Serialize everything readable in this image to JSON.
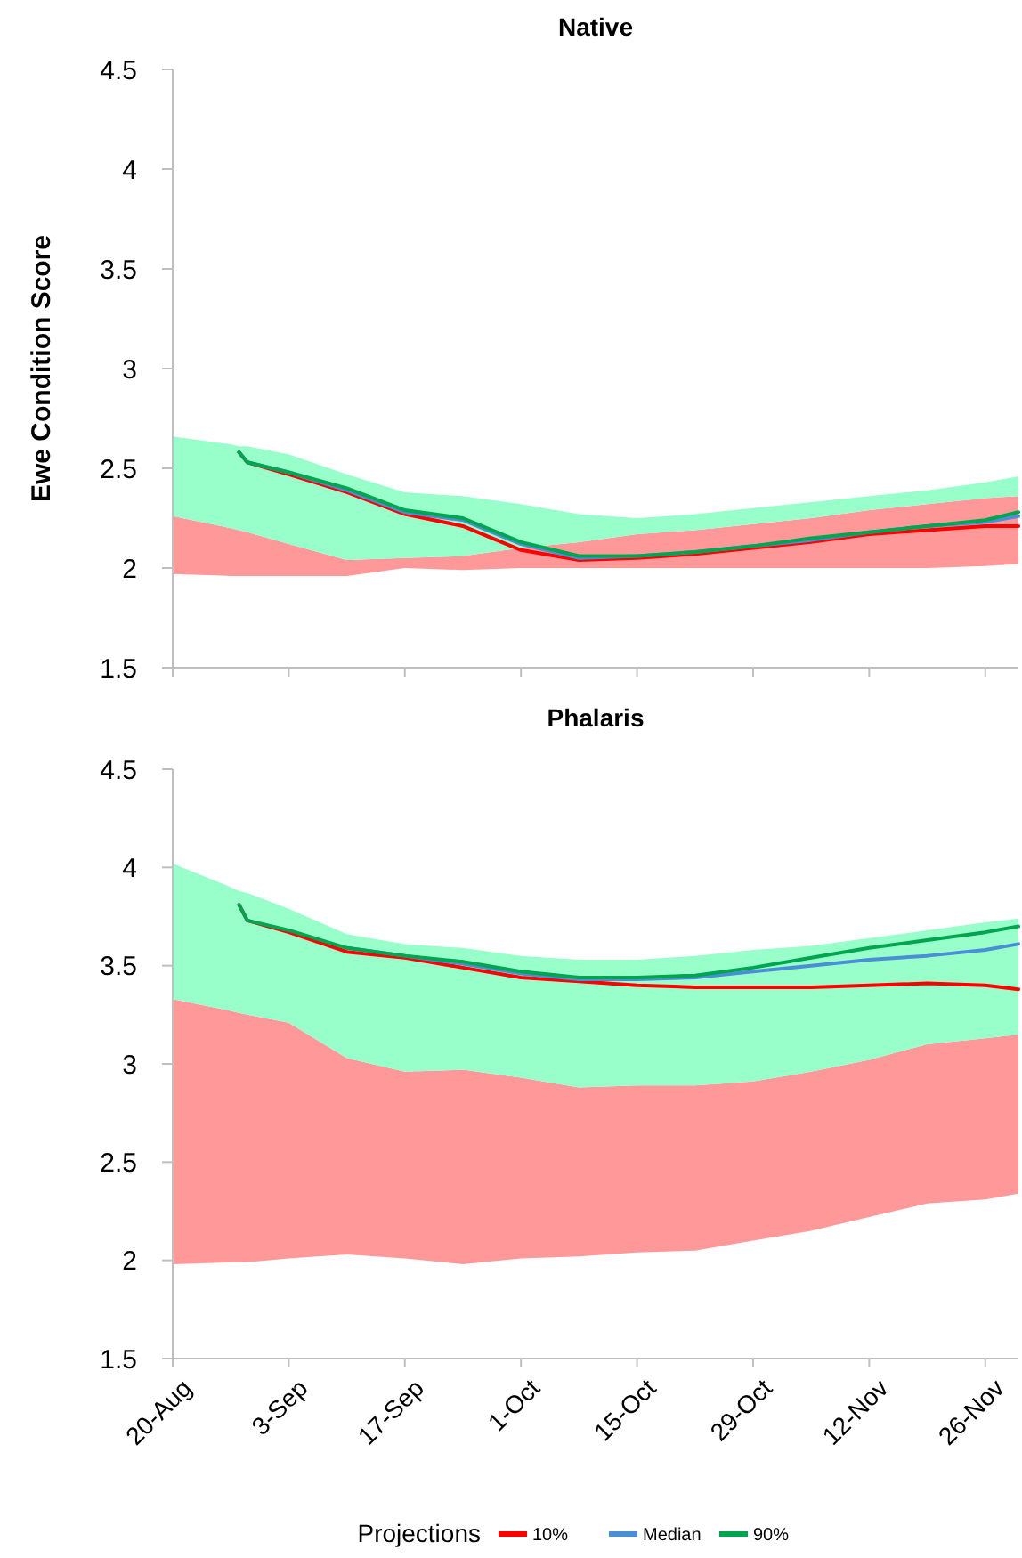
{
  "chart_data": [
    {
      "type": "line",
      "title": "Native",
      "ylabel": "Ewe Condition Score",
      "xlim": [
        "--08-20",
        "--11-30"
      ],
      "xticks": [
        {
          "value": "--08-20",
          "label": null
        },
        {
          "value": "--09-03",
          "label": null
        },
        {
          "value": "--09-17",
          "label": null
        },
        {
          "value": "--10-01",
          "label": null
        },
        {
          "value": "--10-15",
          "label": null
        },
        {
          "value": "--10-29",
          "label": null
        },
        {
          "value": "--11-12",
          "label": null
        },
        {
          "value": "--11-26",
          "label": null
        }
      ],
      "ylim": [
        1.5,
        4.5
      ],
      "yticks": [
        {
          "value": 1.5,
          "label": "1.5"
        },
        {
          "value": 2,
          "label": "2"
        },
        {
          "value": 2.5,
          "label": "2.5"
        },
        {
          "value": 3,
          "label": "3"
        },
        {
          "value": 3.5,
          "label": "3.5"
        },
        {
          "value": 4,
          "label": "4"
        },
        {
          "value": 4.5,
          "label": "4.5"
        }
      ],
      "tick_labels": "y",
      "legend": false,
      "series": [
        {
          "color": "#ff0000",
          "x": [
            "--08-20",
            "--08-27",
            "--08-28",
            "--08-29",
            "--09-03",
            "--09-10",
            "--09-17",
            "--09-24",
            "--10-01",
            "--10-08",
            "--10-15",
            "--10-22",
            "--10-29",
            "--11-05",
            "--11-12",
            "--11-19",
            "--11-26",
            "--11-30"
          ],
          "values": [
            null,
            null,
            2.58,
            2.53,
            2.47,
            2.38,
            2.27,
            2.21,
            2.09,
            2.04,
            2.05,
            2.07,
            2.1,
            2.13,
            2.17,
            2.19,
            2.21,
            2.21
          ],
          "lower": [
            1.97,
            1.96,
            1.96,
            1.96,
            1.96,
            1.96,
            2.0,
            1.99,
            2.0,
            2.0,
            2.0,
            2.0,
            2.0,
            2.0,
            2.0,
            2.0,
            2.01,
            2.02
          ],
          "upper": [
            2.26,
            2.2,
            2.19,
            2.18,
            2.12,
            2.04,
            2.05,
            2.06,
            2.1,
            2.13,
            2.17,
            2.19,
            2.22,
            2.25,
            2.29,
            2.32,
            2.35,
            2.36
          ]
        },
        {
          "color": "#4a8fd6",
          "x": [
            "--08-28",
            "--08-29",
            "--09-03",
            "--09-10",
            "--09-17",
            "--09-24",
            "--10-01",
            "--10-08",
            "--10-15",
            "--10-22",
            "--10-29",
            "--11-05",
            "--11-12",
            "--11-19",
            "--11-26",
            "--11-30"
          ],
          "values": [
            2.58,
            2.53,
            2.48,
            2.39,
            2.28,
            2.24,
            2.12,
            2.05,
            2.06,
            2.08,
            2.11,
            2.14,
            2.18,
            2.21,
            2.23,
            2.26
          ]
        },
        {
          "color": "#00a550",
          "x": [
            "--08-20",
            "--08-27",
            "--08-28",
            "--08-29",
            "--09-03",
            "--09-10",
            "--09-17",
            "--09-24",
            "--10-01",
            "--10-08",
            "--10-15",
            "--10-22",
            "--10-29",
            "--11-05",
            "--11-12",
            "--11-19",
            "--11-26",
            "--11-30"
          ],
          "values": [
            null,
            null,
            2.58,
            2.53,
            2.48,
            2.4,
            2.29,
            2.25,
            2.13,
            2.06,
            2.06,
            2.08,
            2.11,
            2.15,
            2.18,
            2.21,
            2.24,
            2.28
          ],
          "lower": [
            2.26,
            2.2,
            2.19,
            2.18,
            2.12,
            2.04,
            2.05,
            2.06,
            2.1,
            2.13,
            2.17,
            2.19,
            2.22,
            2.25,
            2.29,
            2.32,
            2.35,
            2.36
          ],
          "upper": [
            2.66,
            2.62,
            2.61,
            2.61,
            2.57,
            2.47,
            2.38,
            2.36,
            2.32,
            2.27,
            2.25,
            2.27,
            2.3,
            2.33,
            2.36,
            2.39,
            2.43,
            2.46
          ]
        }
      ]
    },
    {
      "type": "line",
      "title": "Phalaris",
      "legend_title": "Projections",
      "xlim": [
        "--08-20",
        "--11-30"
      ],
      "xticks": [
        {
          "value": "--08-20",
          "label": "20-Aug"
        },
        {
          "value": "--09-03",
          "label": "3-Sep"
        },
        {
          "value": "--09-17",
          "label": "17-Sep"
        },
        {
          "value": "--10-01",
          "label": "1-Oct"
        },
        {
          "value": "--10-15",
          "label": "15-Oct"
        },
        {
          "value": "--10-29",
          "label": "29-Oct"
        },
        {
          "value": "--11-12",
          "label": "12-Nov"
        },
        {
          "value": "--11-26",
          "label": "26-Nov"
        }
      ],
      "ylim": [
        1.5,
        4.5
      ],
      "yticks": [
        {
          "value": 1.5,
          "label": "1.5"
        },
        {
          "value": 2,
          "label": "2"
        },
        {
          "value": 2.5,
          "label": "2.5"
        },
        {
          "value": 3,
          "label": "3"
        },
        {
          "value": 3.5,
          "label": "3.5"
        },
        {
          "value": 4,
          "label": "4"
        },
        {
          "value": 4.5,
          "label": "4.5"
        }
      ],
      "legend": "bottom",
      "series": [
        {
          "name": "10%",
          "color": "#ff0000",
          "x": [
            "--08-20",
            "--08-27",
            "--08-28",
            "--08-29",
            "--09-03",
            "--09-10",
            "--09-17",
            "--09-24",
            "--10-01",
            "--10-08",
            "--10-15",
            "--10-22",
            "--10-29",
            "--11-05",
            "--11-12",
            "--11-19",
            "--11-26",
            "--11-30"
          ],
          "values": [
            null,
            null,
            3.81,
            3.73,
            3.67,
            3.57,
            3.54,
            3.49,
            3.44,
            3.42,
            3.4,
            3.39,
            3.39,
            3.39,
            3.4,
            3.41,
            3.4,
            3.38
          ],
          "lower": [
            1.98,
            1.99,
            1.99,
            1.99,
            2.01,
            2.03,
            2.01,
            1.98,
            2.01,
            2.02,
            2.04,
            2.05,
            2.1,
            2.15,
            2.22,
            2.29,
            2.31,
            2.34
          ],
          "upper": [
            3.33,
            3.27,
            3.26,
            3.25,
            3.21,
            3.03,
            2.96,
            2.97,
            2.93,
            2.88,
            2.89,
            2.89,
            2.91,
            2.96,
            3.02,
            3.1,
            3.13,
            3.15
          ]
        },
        {
          "name": "Median",
          "color": "#4a8fd6",
          "x": [
            "--09-10",
            "--09-17",
            "--09-24",
            "--10-01",
            "--10-08",
            "--10-15",
            "--10-22",
            "--10-29",
            "--11-05",
            "--11-12",
            "--11-19",
            "--11-26",
            "--11-30"
          ],
          "values": [
            3.59,
            3.55,
            3.51,
            3.46,
            3.43,
            3.43,
            3.44,
            3.47,
            3.5,
            3.53,
            3.55,
            3.58,
            3.61
          ]
        },
        {
          "name": "90%",
          "color": "#00a550",
          "x": [
            "--08-20",
            "--08-27",
            "--08-28",
            "--08-29",
            "--09-03",
            "--09-10",
            "--09-17",
            "--09-24",
            "--10-01",
            "--10-08",
            "--10-15",
            "--10-22",
            "--10-29",
            "--11-05",
            "--11-12",
            "--11-19",
            "--11-26",
            "--11-30"
          ],
          "values": [
            null,
            null,
            3.81,
            3.73,
            3.68,
            3.59,
            3.55,
            3.52,
            3.47,
            3.44,
            3.44,
            3.45,
            3.49,
            3.54,
            3.59,
            3.63,
            3.67,
            3.7
          ],
          "lower": [
            3.33,
            3.27,
            3.26,
            3.25,
            3.21,
            3.03,
            2.96,
            2.97,
            2.93,
            2.88,
            2.89,
            2.89,
            2.91,
            2.96,
            3.02,
            3.1,
            3.13,
            3.15
          ],
          "upper": [
            4.02,
            3.9,
            3.88,
            3.87,
            3.79,
            3.66,
            3.61,
            3.59,
            3.55,
            3.53,
            3.53,
            3.55,
            3.58,
            3.6,
            3.64,
            3.68,
            3.72,
            3.74
          ]
        }
      ]
    }
  ]
}
